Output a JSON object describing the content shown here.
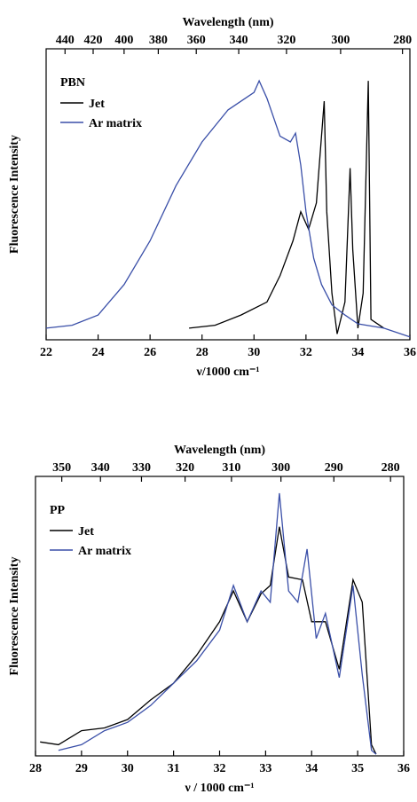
{
  "chart_data": [
    {
      "type": "line",
      "annotation": "PBN",
      "x_label": "ν/1000 cm⁻¹",
      "x2_label": "Wavelength (nm)",
      "y_label": "Fluorescence Intensity",
      "xlim": [
        22,
        36
      ],
      "xticks": [
        22,
        24,
        26,
        28,
        30,
        32,
        34,
        36
      ],
      "x2ticks": [
        440,
        420,
        400,
        380,
        360,
        340,
        320,
        300,
        280
      ],
      "ylim": [
        0,
        1
      ],
      "legend": "upper-left",
      "series": [
        {
          "name": "Jet",
          "color": "#000000",
          "x": [
            27.5,
            28.5,
            29.5,
            30.5,
            31,
            31.5,
            31.8,
            32.1,
            32.4,
            32.7,
            32.8,
            33.0,
            33.2,
            33.5,
            33.7,
            33.8,
            34.0,
            34.2,
            34.4,
            34.5,
            35
          ],
          "values": [
            0.04,
            0.05,
            0.085,
            0.13,
            0.22,
            0.34,
            0.44,
            0.38,
            0.47,
            0.82,
            0.44,
            0.16,
            0.02,
            0.13,
            0.59,
            0.31,
            0.04,
            0.16,
            0.89,
            0.07,
            0.04
          ]
        },
        {
          "name": "Ar matrix",
          "color": "#3a4fa8",
          "x": [
            22,
            23,
            24,
            25,
            26,
            27,
            28,
            29,
            30,
            30.2,
            30.5,
            31,
            31.4,
            31.6,
            31.8,
            32,
            32.3,
            32.6,
            33,
            33.5,
            34,
            35,
            36
          ],
          "values": [
            0.04,
            0.05,
            0.085,
            0.19,
            0.34,
            0.53,
            0.68,
            0.79,
            0.85,
            0.89,
            0.83,
            0.7,
            0.68,
            0.71,
            0.6,
            0.44,
            0.28,
            0.19,
            0.12,
            0.085,
            0.055,
            0.04,
            0.01
          ]
        }
      ]
    },
    {
      "type": "line",
      "annotation": "PP",
      "x_label": "ν / 1000 cm⁻¹",
      "x2_label": "Wavelength (nm)",
      "y_label": "Fluorescence Intensity",
      "xlim": [
        28,
        36
      ],
      "xticks": [
        28,
        29,
        30,
        31,
        32,
        33,
        34,
        35,
        36
      ],
      "x2ticks": [
        350,
        340,
        330,
        320,
        310,
        300,
        290,
        280
      ],
      "ylim": [
        0,
        1
      ],
      "legend": "upper-left",
      "series": [
        {
          "name": "Jet",
          "color": "#000000",
          "x": [
            28.1,
            28.5,
            29,
            29.5,
            30,
            30.5,
            31,
            31.5,
            32,
            32.3,
            32.6,
            32.9,
            33.1,
            33.3,
            33.5,
            33.8,
            34,
            34.3,
            34.6,
            34.9,
            35.1,
            35.3,
            35.4
          ],
          "values": [
            0.05,
            0.04,
            0.09,
            0.1,
            0.13,
            0.2,
            0.26,
            0.36,
            0.48,
            0.59,
            0.48,
            0.58,
            0.61,
            0.82,
            0.64,
            0.63,
            0.48,
            0.48,
            0.31,
            0.63,
            0.55,
            0.04,
            0.006
          ]
        },
        {
          "name": "Ar matrix",
          "color": "#3a4fa8",
          "x": [
            28.5,
            29,
            29.5,
            30,
            30.5,
            31,
            31.5,
            32,
            32.3,
            32.6,
            32.9,
            33.1,
            33.3,
            33.5,
            33.7,
            33.9,
            34.1,
            34.3,
            34.6,
            34.9,
            35.1,
            35.3,
            35.4
          ],
          "values": [
            0.02,
            0.04,
            0.09,
            0.12,
            0.18,
            0.26,
            0.34,
            0.45,
            0.61,
            0.48,
            0.59,
            0.55,
            0.94,
            0.59,
            0.55,
            0.74,
            0.42,
            0.51,
            0.28,
            0.61,
            0.29,
            0.02,
            0.006
          ]
        }
      ]
    }
  ]
}
